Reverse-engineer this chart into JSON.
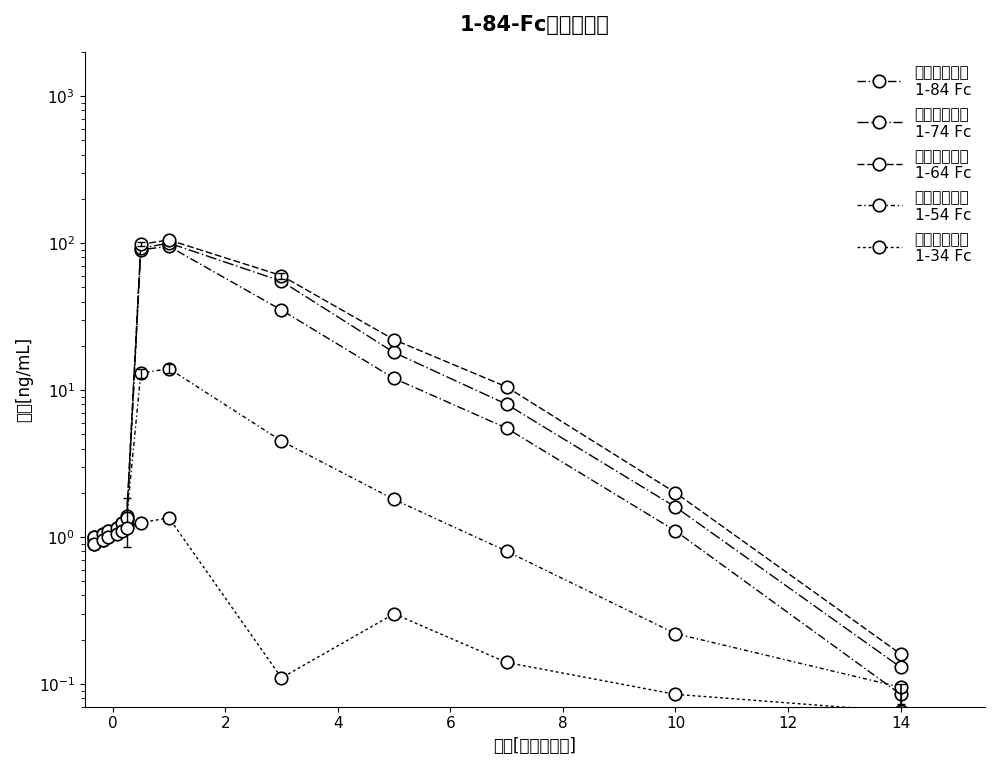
{
  "title": "1-84-Fc截短突变体",
  "xlabel": "时间[给药后天数]",
  "ylabel": "浓度[ng/mL]",
  "xlim": [
    -0.5,
    15.5
  ],
  "ylim": [
    0.07,
    2000
  ],
  "xticks": [
    0,
    2,
    4,
    6,
    8,
    10,
    12,
    14
  ],
  "background_color": "#ffffff",
  "series": [
    {
      "label": "甲状旁腺激素\n1-84 Fc",
      "linestyle": "-.",
      "dashes": [
        6,
        2,
        1,
        2
      ],
      "x": [
        -0.33,
        -0.17,
        -0.08,
        0.08,
        0.17,
        0.25,
        0.5,
        1.0,
        3.0,
        5.0,
        7.0,
        10.0,
        14.0
      ],
      "y": [
        0.9,
        0.95,
        1.0,
        1.1,
        1.15,
        1.2,
        90,
        95,
        35,
        12,
        5.5,
        1.1,
        0.085
      ],
      "yerr_idx": 12,
      "yerr_val": 0.012
    },
    {
      "label": "甲状旁腺激素\n1-74 Fc",
      "linestyle": "--",
      "dashes": [
        8,
        2,
        1,
        2
      ],
      "x": [
        -0.33,
        -0.17,
        -0.08,
        0.08,
        0.17,
        0.25,
        0.5,
        1.0,
        3.0,
        5.0,
        7.0,
        10.0,
        14.0
      ],
      "y": [
        0.95,
        1.0,
        1.05,
        1.1,
        1.2,
        1.3,
        92,
        100,
        55,
        18,
        8.0,
        1.6,
        0.13
      ],
      "yerr_idx": -1,
      "yerr_val": 0
    },
    {
      "label": "甲状旁腺激素\n1-64 Fc",
      "linestyle": "-",
      "dashes": [
        5,
        2
      ],
      "x": [
        -0.33,
        -0.17,
        -0.08,
        0.08,
        0.17,
        0.25,
        0.5,
        1.0,
        3.0,
        5.0,
        7.0,
        10.0,
        14.0
      ],
      "y": [
        1.0,
        1.05,
        1.1,
        1.15,
        1.25,
        1.4,
        98,
        105,
        60,
        22,
        10.5,
        2.0,
        0.16
      ],
      "yerr_idx": 6,
      "yerr_val": 3.0
    },
    {
      "label": "甲状旁腺激素\n1-54 Fc",
      "linestyle": "-.",
      "dashes": [
        3,
        2,
        1,
        2
      ],
      "x": [
        -0.33,
        -0.17,
        -0.08,
        0.08,
        0.17,
        0.25,
        0.5,
        1.0,
        3.0,
        5.0,
        7.0,
        10.0,
        14.0
      ],
      "y": [
        1.0,
        1.05,
        1.1,
        1.15,
        1.25,
        1.35,
        13,
        14,
        4.5,
        1.8,
        0.8,
        0.22,
        0.095
      ],
      "yerr_idx": 5,
      "yerr_val": 0.5
    },
    {
      "label": "甲状旁腺激素\n1-34 Fc",
      "linestyle": "--",
      "dashes": [
        2,
        2
      ],
      "x": [
        -0.33,
        -0.17,
        -0.08,
        0.08,
        0.17,
        0.25,
        0.5,
        1.0,
        3.0,
        5.0,
        7.0,
        10.0,
        14.0
      ],
      "y": [
        0.9,
        0.95,
        1.0,
        1.05,
        1.1,
        1.15,
        1.25,
        1.35,
        0.11,
        0.3,
        0.14,
        0.085,
        0.065
      ],
      "yerr_idx": -1,
      "yerr_val": 0
    }
  ],
  "legend_fontsize": 11,
  "title_fontsize": 15,
  "axis_fontsize": 12,
  "tick_fontsize": 11,
  "marker_size": 9
}
